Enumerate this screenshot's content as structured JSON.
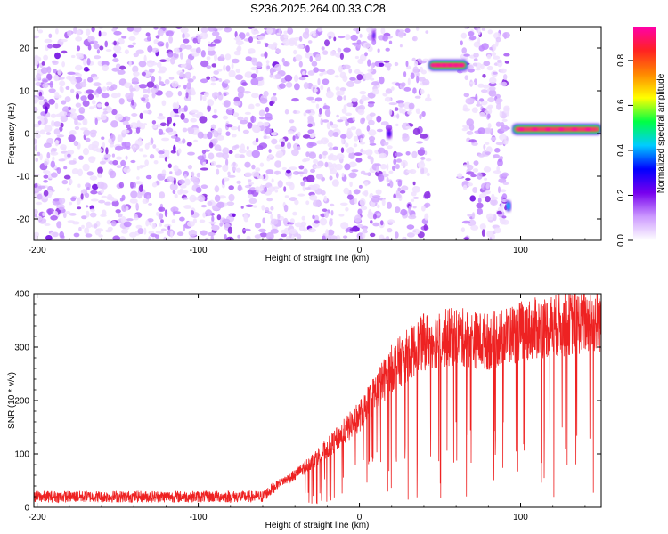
{
  "title": "S236.2025.264.00.33.C28",
  "chart_data": [
    {
      "type": "heatmap",
      "xlabel": "Height of straight line (km)",
      "ylabel": "Frequency (Hz)",
      "xlim": [
        -202,
        150
      ],
      "ylim": [
        -25,
        25
      ],
      "xticks": [
        -200,
        -100,
        0,
        100
      ],
      "xtick_labels": [
        "-200",
        "-100",
        "0",
        "100"
      ],
      "yticks": [
        20,
        10,
        0,
        -10,
        -20
      ],
      "ytick_labels": [
        "20",
        "10",
        "0",
        "-10",
        "-20"
      ],
      "colorbar": {
        "label": "Normalized spectral amplitude",
        "range": [
          0,
          0.95
        ],
        "ticks": [
          0.0,
          0.2,
          0.4,
          0.6,
          0.8
        ],
        "tick_labels": [
          "0.0",
          "0.2",
          "0.4",
          "0.6",
          "0.8"
        ],
        "colors": [
          "#ffffff",
          "#cc99ff",
          "#7700ee",
          "#0000ff",
          "#00ccff",
          "#00ff44",
          "#ffff00",
          "#ff8800",
          "#ff2222",
          "#ff00aa"
        ]
      },
      "noise_region_x": [
        -202,
        92
      ],
      "gap_regions_x": [
        [
          43,
          62
        ],
        [
          93,
          150
        ]
      ],
      "features": [
        {
          "x_start": 43,
          "x_end": 67,
          "freq": 16,
          "amplitude": 0.92
        },
        {
          "x_start": 95,
          "x_end": 150,
          "freq": 1,
          "amplitude": 0.9
        },
        {
          "x_start": 91,
          "x_end": 94,
          "freq": -17,
          "amplitude": 0.45
        },
        {
          "x_start": 8,
          "x_end": 10,
          "freq": 23,
          "amplitude": 0.3
        },
        {
          "x_start": 17,
          "x_end": 20,
          "freq": 0,
          "amplitude": 0.3
        }
      ]
    },
    {
      "type": "line",
      "xlabel": "Height of straight line (km)",
      "ylabel": "SNR (10 * v/v)",
      "xlim": [
        -202,
        150
      ],
      "ylim": [
        0,
        400
      ],
      "xticks": [
        -200,
        -100,
        0,
        100
      ],
      "xtick_labels": [
        "-200",
        "-100",
        "0",
        "100"
      ],
      "yticks": [
        0,
        100,
        200,
        300,
        400
      ],
      "ytick_labels": [
        "0",
        "100",
        "200",
        "300",
        "400"
      ],
      "color": "#ee2222",
      "trend": {
        "x": [
          -202,
          -60,
          -50,
          -40,
          -20,
          0,
          20,
          40,
          60,
          80,
          100,
          120,
          150
        ],
        "y": [
          20,
          20,
          45,
          60,
          110,
          170,
          260,
          310,
          320,
          310,
          330,
          340,
          350
        ]
      }
    }
  ]
}
